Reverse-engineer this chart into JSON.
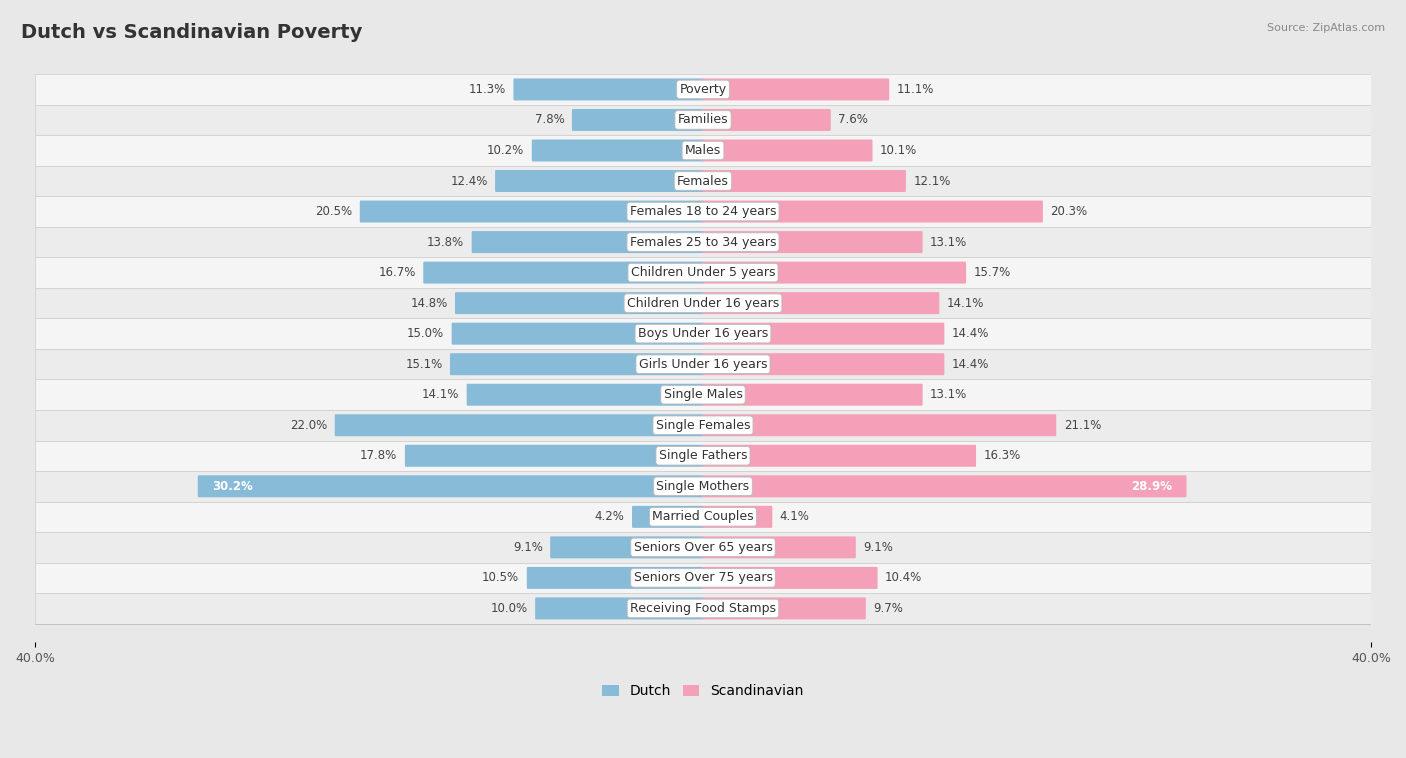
{
  "title": "Dutch vs Scandinavian Poverty",
  "source": "Source: ZipAtlas.com",
  "categories": [
    "Poverty",
    "Families",
    "Males",
    "Females",
    "Females 18 to 24 years",
    "Females 25 to 34 years",
    "Children Under 5 years",
    "Children Under 16 years",
    "Boys Under 16 years",
    "Girls Under 16 years",
    "Single Males",
    "Single Females",
    "Single Fathers",
    "Single Mothers",
    "Married Couples",
    "Seniors Over 65 years",
    "Seniors Over 75 years",
    "Receiving Food Stamps"
  ],
  "dutch": [
    11.3,
    7.8,
    10.2,
    12.4,
    20.5,
    13.8,
    16.7,
    14.8,
    15.0,
    15.1,
    14.1,
    22.0,
    17.8,
    30.2,
    4.2,
    9.1,
    10.5,
    10.0
  ],
  "scandinavian": [
    11.1,
    7.6,
    10.1,
    12.1,
    20.3,
    13.1,
    15.7,
    14.1,
    14.4,
    14.4,
    13.1,
    21.1,
    16.3,
    28.9,
    4.1,
    9.1,
    10.4,
    9.7
  ],
  "dutch_color": "#88bbd8",
  "scandinavian_color": "#f4a0b8",
  "bg_color": "#e8e8e8",
  "row_bg_even": "#f5f5f5",
  "row_bg_odd": "#ececec",
  "x_max": 40.0,
  "bar_height": 0.62,
  "label_fontsize": 9,
  "title_fontsize": 14,
  "value_fontsize": 8.5,
  "source_fontsize": 8
}
